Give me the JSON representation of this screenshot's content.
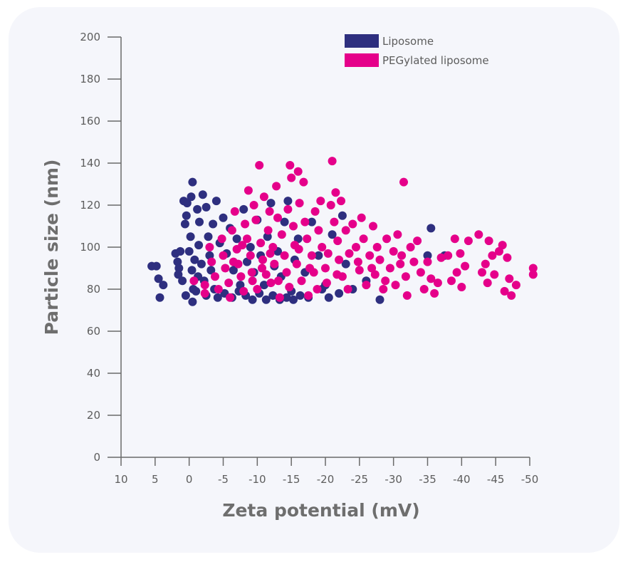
{
  "chart_data": {
    "type": "scatter",
    "xlabel": "Zeta potential (mV)",
    "ylabel": "Particle size (nm)",
    "xlim": [
      10,
      -50
    ],
    "ylim": [
      0,
      200
    ],
    "x_ticks": [
      10,
      5,
      0,
      -5,
      -10,
      -15,
      -20,
      -25,
      -30,
      -35,
      -40,
      -45,
      -50
    ],
    "x_tick_labels": [
      "10",
      "5",
      "0",
      "-5",
      "-10",
      "-15",
      "-20",
      "-25",
      "-30",
      "-35",
      "-40",
      "-45",
      "-50"
    ],
    "y_ticks": [
      0,
      20,
      40,
      60,
      80,
      100,
      120,
      140,
      160,
      180,
      200
    ],
    "y_tick_labels": [
      "0",
      "20",
      "40",
      "60",
      "80",
      "100",
      "120",
      "140",
      "160",
      "180",
      "200"
    ],
    "x_axis_reversed": true,
    "grid": false,
    "legend_position": "top-right",
    "series": [
      {
        "name": "Liposome",
        "color": "#2e2f7f",
        "points": [
          [
            5.5,
            91
          ],
          [
            4.8,
            91
          ],
          [
            4.5,
            85
          ],
          [
            4.3,
            76
          ],
          [
            3.8,
            82
          ],
          [
            2.0,
            97
          ],
          [
            1.7,
            93
          ],
          [
            1.6,
            87
          ],
          [
            1.5,
            90
          ],
          [
            1.3,
            98
          ],
          [
            1.0,
            84
          ],
          [
            0.8,
            122
          ],
          [
            0.6,
            111
          ],
          [
            0.4,
            115
          ],
          [
            0.5,
            77
          ],
          [
            0.3,
            121
          ],
          [
            -0.3,
            124
          ],
          [
            -0.5,
            131
          ],
          [
            -0.5,
            74
          ],
          [
            0.0,
            98
          ],
          [
            -0.2,
            105
          ],
          [
            -0.4,
            89
          ],
          [
            -0.6,
            80
          ],
          [
            -0.8,
            94
          ],
          [
            -1.2,
            118
          ],
          [
            -1.5,
            112
          ],
          [
            -2.0,
            125
          ],
          [
            -2.5,
            119
          ],
          [
            -2.8,
            105
          ],
          [
            -3.0,
            96
          ],
          [
            -3.5,
            111
          ],
          [
            -4.0,
            122
          ],
          [
            -3.2,
            89
          ],
          [
            -2.2,
            84
          ],
          [
            -1.4,
            101
          ],
          [
            -1.8,
            92
          ],
          [
            -4.5,
            102
          ],
          [
            -5.0,
            114
          ],
          [
            -5.5,
            97
          ],
          [
            -6.0,
            109
          ],
          [
            -6.5,
            89
          ],
          [
            -7.0,
            104
          ],
          [
            -7.5,
            82
          ],
          [
            -8.0,
            118
          ],
          [
            -8.5,
            93
          ],
          [
            -9.0,
            100
          ],
          [
            -9.5,
            88
          ],
          [
            -10.0,
            113
          ],
          [
            -10.5,
            96
          ],
          [
            -11.0,
            82
          ],
          [
            -11.5,
            105
          ],
          [
            -12.0,
            121
          ],
          [
            -12.5,
            91
          ],
          [
            -13.0,
            98
          ],
          [
            -13.5,
            86
          ],
          [
            -14.0,
            112
          ],
          [
            -14.5,
            122
          ],
          [
            -15.0,
            79
          ],
          [
            -15.5,
            94
          ],
          [
            -16.0,
            104
          ],
          [
            -17.0,
            88
          ],
          [
            -18.0,
            112
          ],
          [
            -19.0,
            96
          ],
          [
            -20.0,
            82
          ],
          [
            -21.0,
            106
          ],
          [
            -22.0,
            78
          ],
          [
            -22.5,
            115
          ],
          [
            -24.0,
            80
          ],
          [
            -26.0,
            84
          ],
          [
            -28.0,
            75
          ],
          [
            -35.0,
            96
          ],
          [
            -35.5,
            109
          ],
          [
            -37.5,
            96
          ],
          [
            -1.0,
            79
          ],
          [
            -1.3,
            86
          ],
          [
            -2.5,
            77
          ],
          [
            -3.7,
            80
          ],
          [
            -4.2,
            76
          ],
          [
            -5.2,
            78
          ],
          [
            -6.3,
            76
          ],
          [
            -7.3,
            79
          ],
          [
            -8.3,
            77
          ],
          [
            -9.3,
            75
          ],
          [
            -10.3,
            78
          ],
          [
            -11.3,
            75
          ],
          [
            -12.3,
            77
          ],
          [
            -13.3,
            75
          ],
          [
            -14.3,
            76
          ],
          [
            -15.3,
            75
          ],
          [
            -16.3,
            77
          ],
          [
            -17.5,
            76
          ],
          [
            -19.5,
            80
          ],
          [
            -20.5,
            76
          ],
          [
            -23.0,
            92
          ]
        ]
      },
      {
        "name": "PEGylated liposome",
        "color": "#e5008a",
        "points": [
          [
            -0.7,
            84
          ],
          [
            -2.3,
            82
          ],
          [
            -2.3,
            78
          ],
          [
            -3.0,
            100
          ],
          [
            -3.3,
            93
          ],
          [
            -3.8,
            86
          ],
          [
            -4.3,
            80
          ],
          [
            -4.8,
            104
          ],
          [
            -5.0,
            96
          ],
          [
            -5.3,
            90
          ],
          [
            -5.8,
            83
          ],
          [
            -6.0,
            76
          ],
          [
            -6.3,
            108
          ],
          [
            -6.7,
            117
          ],
          [
            -7.0,
            99
          ],
          [
            -7.2,
            92
          ],
          [
            -7.6,
            86
          ],
          [
            -8.0,
            79
          ],
          [
            -8.2,
            111
          ],
          [
            -8.5,
            104
          ],
          [
            -8.7,
            127
          ],
          [
            -9.0,
            96
          ],
          [
            -9.2,
            88
          ],
          [
            -9.5,
            120
          ],
          [
            -9.8,
            113
          ],
          [
            -10.0,
            80
          ],
          [
            -10.3,
            139
          ],
          [
            -10.5,
            102
          ],
          [
            -10.8,
            94
          ],
          [
            -11.0,
            124
          ],
          [
            -11.3,
            87
          ],
          [
            -11.6,
            108
          ],
          [
            -11.8,
            117
          ],
          [
            -12.0,
            83
          ],
          [
            -12.3,
            100
          ],
          [
            -12.5,
            92
          ],
          [
            -12.8,
            129
          ],
          [
            -13.0,
            114
          ],
          [
            -13.3,
            76
          ],
          [
            -13.6,
            106
          ],
          [
            -14.0,
            96
          ],
          [
            -14.3,
            88
          ],
          [
            -14.5,
            118
          ],
          [
            -14.8,
            139
          ],
          [
            -15.0,
            133
          ],
          [
            -15.3,
            110
          ],
          [
            -15.5,
            101
          ],
          [
            -15.8,
            92
          ],
          [
            -16.0,
            136
          ],
          [
            -16.2,
            121
          ],
          [
            -16.5,
            84
          ],
          [
            -16.8,
            131
          ],
          [
            -17.0,
            112
          ],
          [
            -17.3,
            104
          ],
          [
            -17.5,
            77
          ],
          [
            -18.0,
            96
          ],
          [
            -18.3,
            88
          ],
          [
            -18.5,
            117
          ],
          [
            -19.0,
            108
          ],
          [
            -19.3,
            122
          ],
          [
            -19.5,
            100
          ],
          [
            -20.0,
            90
          ],
          [
            -20.2,
            83
          ],
          [
            -20.8,
            120
          ],
          [
            -21.0,
            141
          ],
          [
            -21.3,
            112
          ],
          [
            -21.5,
            126
          ],
          [
            -21.8,
            103
          ],
          [
            -22.0,
            94
          ],
          [
            -22.3,
            122
          ],
          [
            -22.5,
            86
          ],
          [
            -23.0,
            108
          ],
          [
            -23.5,
            97
          ],
          [
            -24.0,
            111
          ],
          [
            -24.5,
            100
          ],
          [
            -25.0,
            89
          ],
          [
            -25.3,
            114
          ],
          [
            -25.6,
            104
          ],
          [
            -26.0,
            82
          ],
          [
            -26.5,
            96
          ],
          [
            -27.0,
            110
          ],
          [
            -27.3,
            87
          ],
          [
            -27.6,
            100
          ],
          [
            -28.0,
            94
          ],
          [
            -28.5,
            80
          ],
          [
            -29.0,
            104
          ],
          [
            -29.5,
            90
          ],
          [
            -30.0,
            98
          ],
          [
            -30.3,
            82
          ],
          [
            -30.6,
            106
          ],
          [
            -31.0,
            92
          ],
          [
            -31.5,
            131
          ],
          [
            -31.8,
            86
          ],
          [
            -32.0,
            77
          ],
          [
            -32.5,
            100
          ],
          [
            -33.0,
            93
          ],
          [
            -33.5,
            103
          ],
          [
            -34.0,
            88
          ],
          [
            -34.5,
            80
          ],
          [
            -35.0,
            93
          ],
          [
            -35.5,
            85
          ],
          [
            -36.0,
            78
          ],
          [
            -36.5,
            83
          ],
          [
            -37.0,
            95
          ],
          [
            -38.0,
            96
          ],
          [
            -38.5,
            84
          ],
          [
            -39.0,
            104
          ],
          [
            -39.3,
            88
          ],
          [
            -39.8,
            97
          ],
          [
            -40.0,
            81
          ],
          [
            -40.5,
            91
          ],
          [
            -41.0,
            103
          ],
          [
            -42.5,
            106
          ],
          [
            -43.0,
            88
          ],
          [
            -43.5,
            92
          ],
          [
            -43.8,
            83
          ],
          [
            -44.0,
            103
          ],
          [
            -44.5,
            96
          ],
          [
            -44.8,
            87
          ],
          [
            -45.5,
            98
          ],
          [
            -46.0,
            101
          ],
          [
            -46.3,
            79
          ],
          [
            -46.7,
            95
          ],
          [
            -47.0,
            85
          ],
          [
            -47.3,
            77
          ],
          [
            -48.0,
            82
          ],
          [
            -50.5,
            90
          ],
          [
            -50.5,
            87
          ],
          [
            -6.5,
            93
          ],
          [
            -7.8,
            101
          ],
          [
            -9.3,
            84
          ],
          [
            -10.7,
            90
          ],
          [
            -11.9,
            97
          ],
          [
            -13.1,
            84
          ],
          [
            -14.7,
            81
          ],
          [
            -16.1,
            99
          ],
          [
            -17.7,
            90
          ],
          [
            -18.8,
            80
          ],
          [
            -20.4,
            97
          ],
          [
            -21.7,
            87
          ],
          [
            -23.3,
            80
          ],
          [
            -24.8,
            93
          ],
          [
            -26.8,
            90
          ],
          [
            -28.8,
            84
          ],
          [
            -31.2,
            96
          ]
        ]
      }
    ]
  }
}
